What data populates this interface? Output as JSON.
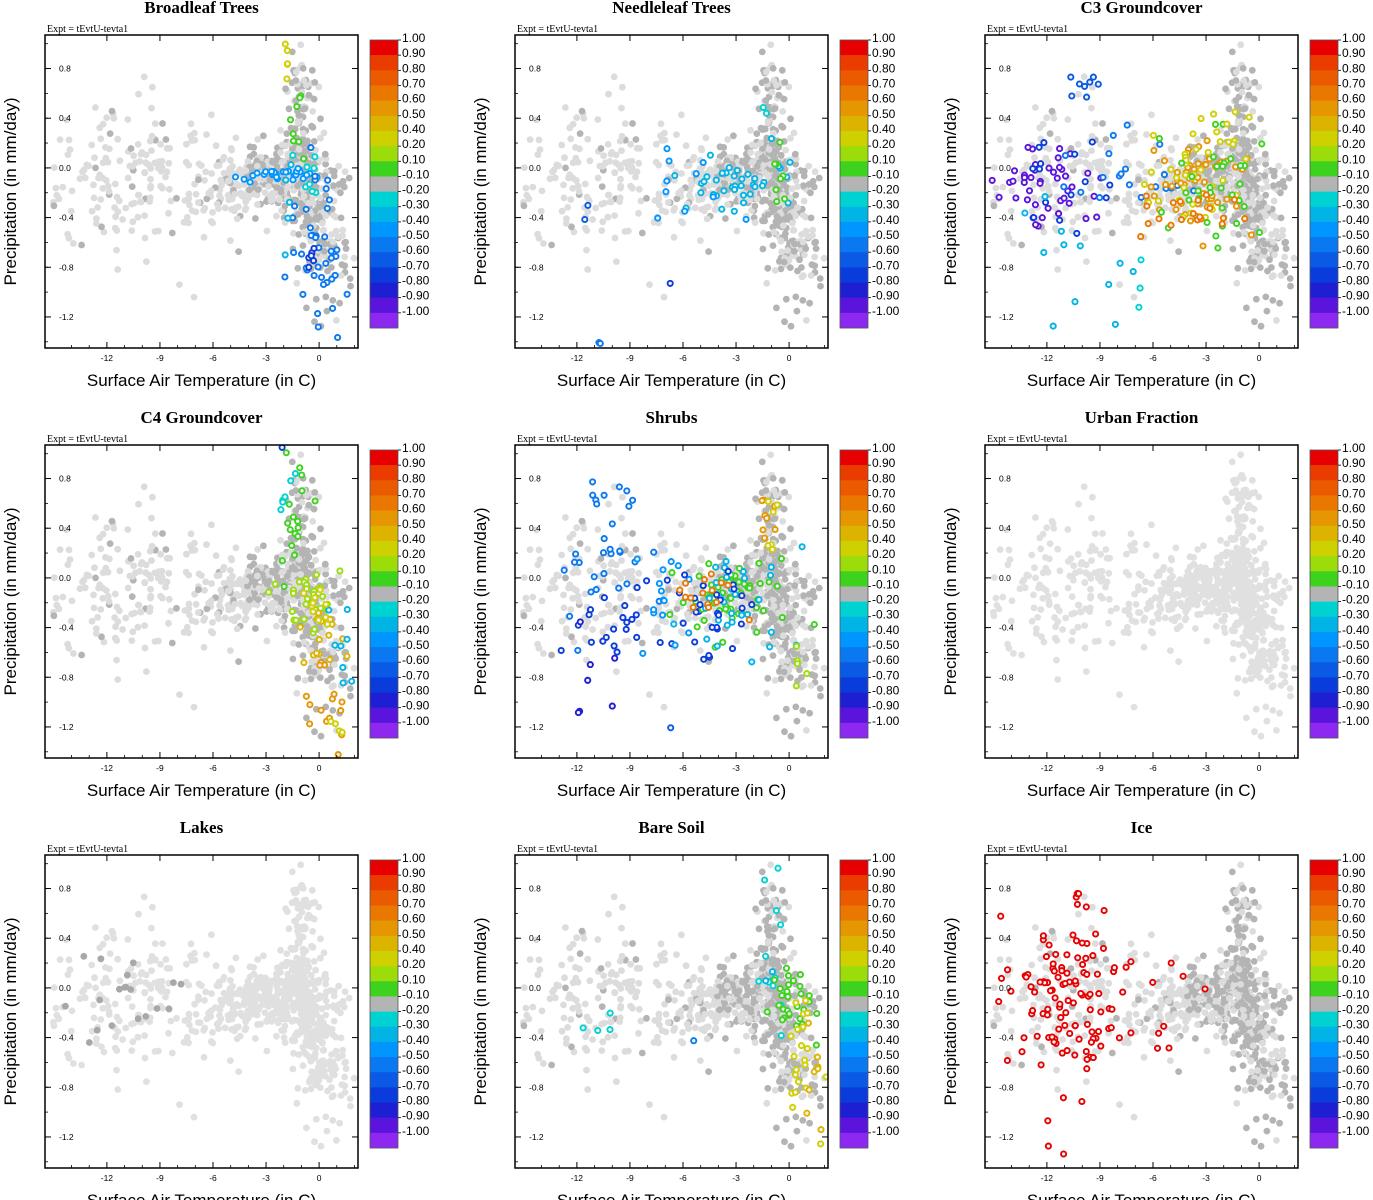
{
  "chart_data": {
    "type": "scatter",
    "experiment": "Expt = tEvtU-tevta1",
    "xlabel": "Surface Air Temperature (in C)",
    "ylabel": "Precipitation (in mm/day)",
    "xlim": [
      -15.5,
      2.2
    ],
    "ylim": [
      -1.45,
      1.07
    ],
    "xticks": [
      -12,
      -9,
      -6,
      -3,
      0
    ],
    "xtick_labels": [
      "-12",
      "-9",
      "-6",
      "-3",
      "0"
    ],
    "yticks": [
      0.8,
      0.4,
      0.0,
      -0.4,
      -0.8,
      -1.2
    ],
    "ytick_labels": [
      "0.8",
      "0.4",
      "0.0",
      "-0.4",
      "-0.8",
      "-1.2"
    ],
    "colorbar": {
      "labels": [
        "1.00",
        "0.90",
        "0.80",
        "0.70",
        "0.60",
        "0.50",
        "0.40",
        "0.20",
        "0.10",
        "-0.10",
        "-0.20",
        "-0.30",
        "-0.40",
        "-0.50",
        "-0.60",
        "-0.70",
        "-0.80",
        "-0.90",
        "-1.00"
      ],
      "colors": [
        "#e60000",
        "#eb3c00",
        "#ec5a00",
        "#ea7800",
        "#e59600",
        "#dcb400",
        "#cfd000",
        "#9bdc0a",
        "#3cd21e",
        "#b4b4b4",
        "#00d2d2",
        "#00b4e6",
        "#0096ff",
        "#0a78f0",
        "#0a5ae6",
        "#0a3cdc",
        "#1e1ed2",
        "#5a14dc",
        "#8c28f0"
      ]
    },
    "panels": [
      {
        "title": "Broadleaf Trees",
        "clusters": [
          {
            "x": -2.5,
            "y": -0.05,
            "sx": 1.2,
            "sy": 0.03,
            "n": 30,
            "c": 12
          },
          {
            "x": -0.4,
            "y": -0.55,
            "sx": 0.7,
            "sy": 0.3,
            "n": 30,
            "c": 13
          },
          {
            "x": 0.8,
            "y": -0.95,
            "sx": 0.5,
            "sy": 0.2,
            "n": 10,
            "c": 13
          },
          {
            "x": -0.4,
            "y": -0.8,
            "sx": 0.3,
            "sy": 0.1,
            "n": 6,
            "c": 15
          },
          {
            "x": -1.9,
            "y": 0.88,
            "sx": 0.15,
            "sy": 0.12,
            "n": 5,
            "c": 6
          },
          {
            "x": -1.3,
            "y": 0.4,
            "sx": 0.4,
            "sy": 0.2,
            "n": 8,
            "c": 8
          },
          {
            "x": -0.5,
            "y": -0.08,
            "sx": 0.4,
            "sy": 0.1,
            "n": 8,
            "c": 10
          },
          {
            "x": -1.5,
            "y": -0.4,
            "sx": 0.5,
            "sy": 0.2,
            "n": 5,
            "c": 11
          }
        ]
      },
      {
        "title": "Needleleaf Trees",
        "clusters": [
          {
            "x": -3.0,
            "y": -0.1,
            "sx": 1.5,
            "sy": 0.12,
            "n": 40,
            "c": 11
          },
          {
            "x": -6.0,
            "y": -0.1,
            "sx": 2.0,
            "sy": 0.2,
            "n": 10,
            "c": 12
          },
          {
            "x": -0.5,
            "y": -0.1,
            "sx": 0.3,
            "sy": 0.2,
            "n": 8,
            "c": 8
          },
          {
            "x": -11.5,
            "y": -0.6,
            "sx": 0.3,
            "sy": 0.2,
            "n": 2,
            "c": 14
          },
          {
            "x": -7.0,
            "y": -0.95,
            "sx": 0.3,
            "sy": 0.05,
            "n": 1,
            "c": 15
          },
          {
            "x": -11.0,
            "y": -1.43,
            "sx": 0.3,
            "sy": 0.02,
            "n": 2,
            "c": 13
          },
          {
            "x": -1.5,
            "y": 0.6,
            "sx": 0.4,
            "sy": 0.1,
            "n": 2,
            "c": 10
          }
        ]
      },
      {
        "title": "C3 Groundcover",
        "clusters": [
          {
            "x": -12.0,
            "y": -0.2,
            "sx": 1.6,
            "sy": 0.18,
            "n": 45,
            "c": 17
          },
          {
            "x": -10.5,
            "y": 0.1,
            "sx": 1.5,
            "sy": 0.3,
            "n": 15,
            "c": 15
          },
          {
            "x": -9.5,
            "y": 0.65,
            "sx": 0.8,
            "sy": 0.08,
            "n": 8,
            "c": 14
          },
          {
            "x": -10.5,
            "y": -0.6,
            "sx": 1.5,
            "sy": 0.4,
            "n": 12,
            "c": 11
          },
          {
            "x": -7.5,
            "y": -0.1,
            "sx": 1.5,
            "sy": 0.2,
            "n": 20,
            "c": 13
          },
          {
            "x": -3.5,
            "y": -0.15,
            "sx": 1.5,
            "sy": 0.18,
            "n": 55,
            "c": 4
          },
          {
            "x": -3.5,
            "y": -0.1,
            "sx": 1.5,
            "sy": 0.2,
            "n": 30,
            "c": 6
          },
          {
            "x": -2.5,
            "y": -0.2,
            "sx": 1.5,
            "sy": 0.25,
            "n": 25,
            "c": 8
          },
          {
            "x": -4.0,
            "y": -0.35,
            "sx": 1.5,
            "sy": 0.15,
            "n": 20,
            "c": 3
          },
          {
            "x": -2.0,
            "y": 0.3,
            "sx": 1.0,
            "sy": 0.15,
            "n": 10,
            "c": 6
          },
          {
            "x": -7.0,
            "y": -1.0,
            "sx": 0.5,
            "sy": 0.2,
            "n": 3,
            "c": 10
          },
          {
            "x": -1.5,
            "y": -0.4,
            "sx": 0.8,
            "sy": 0.3,
            "n": 8,
            "c": 8
          }
        ]
      },
      {
        "title": "C4 Groundcover",
        "clusters": [
          {
            "x": -1.5,
            "y": 0.4,
            "sx": 0.5,
            "sy": 0.3,
            "n": 18,
            "c": 8
          },
          {
            "x": -1.7,
            "y": 0.75,
            "sx": 0.3,
            "sy": 0.1,
            "n": 6,
            "c": 10
          },
          {
            "x": -0.5,
            "y": -0.1,
            "sx": 0.8,
            "sy": 0.15,
            "n": 30,
            "c": 7
          },
          {
            "x": 0.2,
            "y": -0.5,
            "sx": 0.6,
            "sy": 0.2,
            "n": 15,
            "c": 5
          },
          {
            "x": 0.5,
            "y": -0.9,
            "sx": 0.6,
            "sy": 0.2,
            "n": 15,
            "c": 4
          },
          {
            "x": 1.0,
            "y": -1.15,
            "sx": 0.4,
            "sy": 0.05,
            "n": 4,
            "c": 6
          },
          {
            "x": 1.2,
            "y": -0.6,
            "sx": 0.5,
            "sy": 0.2,
            "n": 8,
            "c": 11
          },
          {
            "x": 0.0,
            "y": -0.2,
            "sx": 0.6,
            "sy": 0.1,
            "n": 10,
            "c": 6
          },
          {
            "x": -2.0,
            "y": 1.05,
            "sx": 0.1,
            "sy": 0.02,
            "n": 1,
            "c": 15
          }
        ]
      },
      {
        "title": "Shrubs",
        "clusters": [
          {
            "x": -10.5,
            "y": 0.2,
            "sx": 1.5,
            "sy": 0.3,
            "n": 25,
            "c": 13
          },
          {
            "x": -9.5,
            "y": 0.65,
            "sx": 0.8,
            "sy": 0.06,
            "n": 6,
            "c": 13
          },
          {
            "x": -9.0,
            "y": -0.35,
            "sx": 2.0,
            "sy": 0.2,
            "n": 25,
            "c": 15
          },
          {
            "x": -11.5,
            "y": -0.9,
            "sx": 0.8,
            "sy": 0.3,
            "n": 8,
            "c": 16
          },
          {
            "x": -6.5,
            "y": -0.1,
            "sx": 1.2,
            "sy": 0.25,
            "n": 15,
            "c": 12
          },
          {
            "x": -3.5,
            "y": -0.15,
            "sx": 1.5,
            "sy": 0.15,
            "n": 60,
            "c": 8
          },
          {
            "x": -3.0,
            "y": -0.2,
            "sx": 1.5,
            "sy": 0.2,
            "n": 30,
            "c": 11
          },
          {
            "x": -4.0,
            "y": -0.3,
            "sx": 1.2,
            "sy": 0.15,
            "n": 25,
            "c": 15
          },
          {
            "x": -4.5,
            "y": -0.1,
            "sx": 1.0,
            "sy": 0.1,
            "n": 15,
            "c": 3
          },
          {
            "x": -1.2,
            "y": 0.6,
            "sx": 0.3,
            "sy": 0.2,
            "n": 8,
            "c": 4
          },
          {
            "x": -1.0,
            "y": 0.3,
            "sx": 0.3,
            "sy": 0.2,
            "n": 6,
            "c": 6
          },
          {
            "x": 0.3,
            "y": -0.8,
            "sx": 0.4,
            "sy": 0.1,
            "n": 5,
            "c": 7
          },
          {
            "x": -7.0,
            "y": -1.2,
            "sx": 0.3,
            "sy": 0.05,
            "n": 1,
            "c": 14
          }
        ]
      },
      {
        "title": "Urban Fraction",
        "clusters": []
      },
      {
        "title": "Lakes",
        "clusters": []
      },
      {
        "title": "Bare Soil",
        "clusters": [
          {
            "x": -1.0,
            "y": 0.3,
            "sx": 0.4,
            "sy": 0.4,
            "n": 12,
            "c": 10
          },
          {
            "x": 0.3,
            "y": -0.1,
            "sx": 0.6,
            "sy": 0.15,
            "n": 30,
            "c": 8
          },
          {
            "x": 0.8,
            "y": -0.5,
            "sx": 0.6,
            "sy": 0.2,
            "n": 20,
            "c": 6
          },
          {
            "x": 1.5,
            "y": -0.8,
            "sx": 0.4,
            "sy": 0.3,
            "n": 8,
            "c": 5
          },
          {
            "x": -11.0,
            "y": -0.35,
            "sx": 0.8,
            "sy": 0.1,
            "n": 4,
            "c": 10
          },
          {
            "x": -5.0,
            "y": -0.55,
            "sx": 0.3,
            "sy": 0.05,
            "n": 1,
            "c": 13
          },
          {
            "x": -1.5,
            "y": 0.15,
            "sx": 0.3,
            "sy": 0.05,
            "n": 2,
            "c": 11
          },
          {
            "x": 1.7,
            "y": -1.2,
            "sx": 0.1,
            "sy": 0.05,
            "n": 1,
            "c": 6
          }
        ]
      },
      {
        "title": "Ice",
        "clusters": [
          {
            "x": -11.0,
            "y": -0.1,
            "sx": 2.0,
            "sy": 0.35,
            "n": 110,
            "c": 0
          },
          {
            "x": -9.5,
            "y": 0.65,
            "sx": 0.8,
            "sy": 0.06,
            "n": 5,
            "c": 0
          },
          {
            "x": -11.5,
            "y": -1.1,
            "sx": 0.7,
            "sy": 0.25,
            "n": 5,
            "c": 0
          },
          {
            "x": -5.5,
            "y": -0.4,
            "sx": 0.4,
            "sy": 0.15,
            "n": 4,
            "c": 0
          },
          {
            "x": -4.5,
            "y": 0.1,
            "sx": 0.6,
            "sy": 0.08,
            "n": 3,
            "c": 0
          }
        ]
      }
    ]
  }
}
